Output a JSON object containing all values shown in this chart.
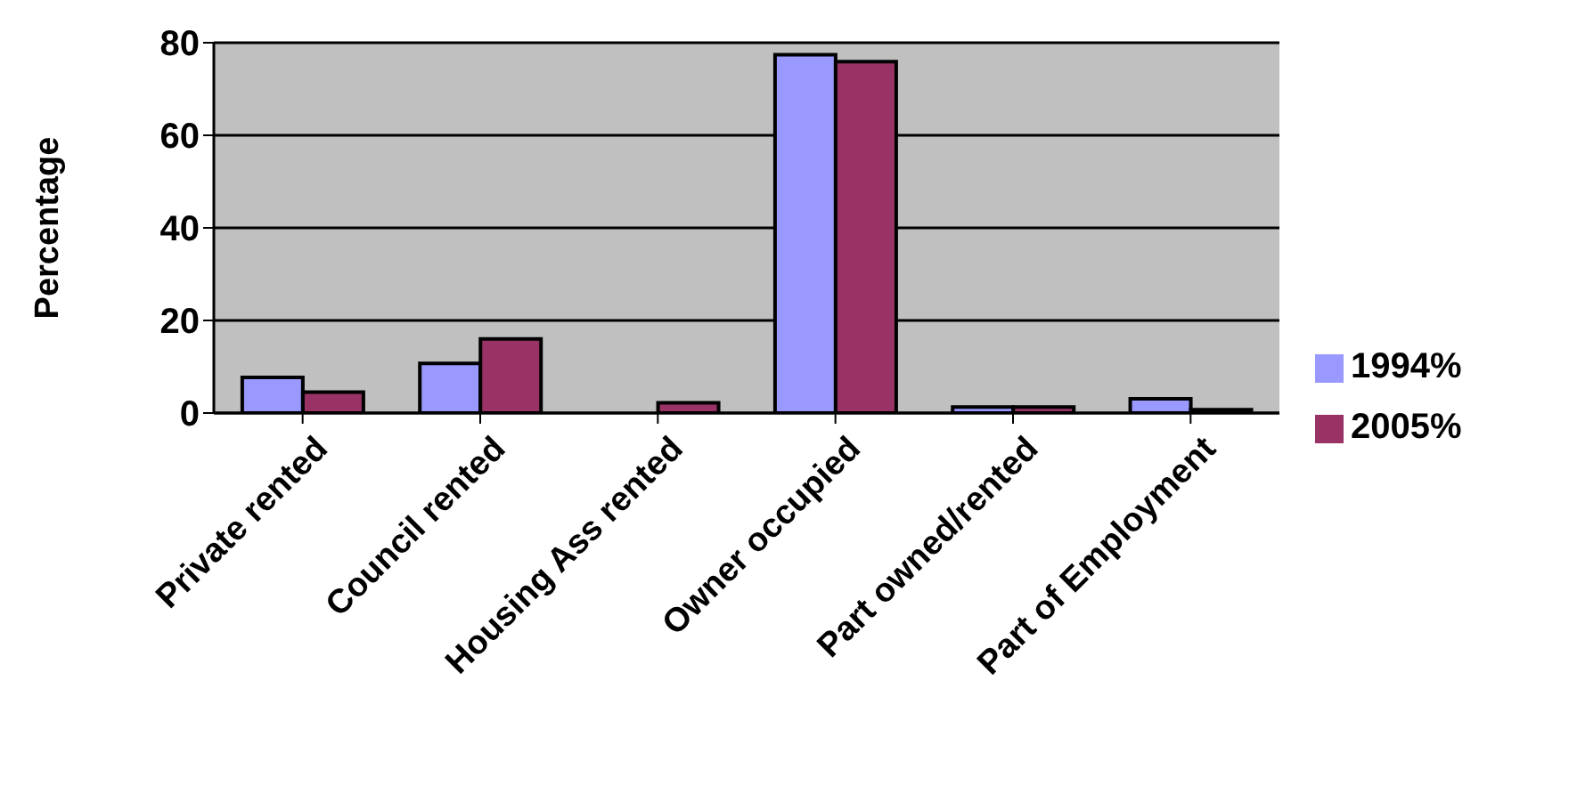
{
  "chart_data": {
    "type": "bar",
    "ylabel": "Percentage",
    "categories": [
      "Private rented",
      "Council rented",
      "Housing Ass rented",
      "Owner occupied",
      "Part owned/rented",
      "Part of Employment"
    ],
    "series": [
      {
        "name": "1994%",
        "color": "#9999ff",
        "values": [
          7.7,
          10.7,
          0,
          77.4,
          1.3,
          3.1
        ]
      },
      {
        "name": "2005%",
        "color": "#993366",
        "values": [
          4.5,
          16,
          2.2,
          75.9,
          1.3,
          0.7
        ]
      }
    ],
    "ylim": [
      0,
      80
    ],
    "yticks": [
      0,
      20,
      40,
      60,
      80
    ],
    "grid": "y",
    "legend": "right"
  }
}
